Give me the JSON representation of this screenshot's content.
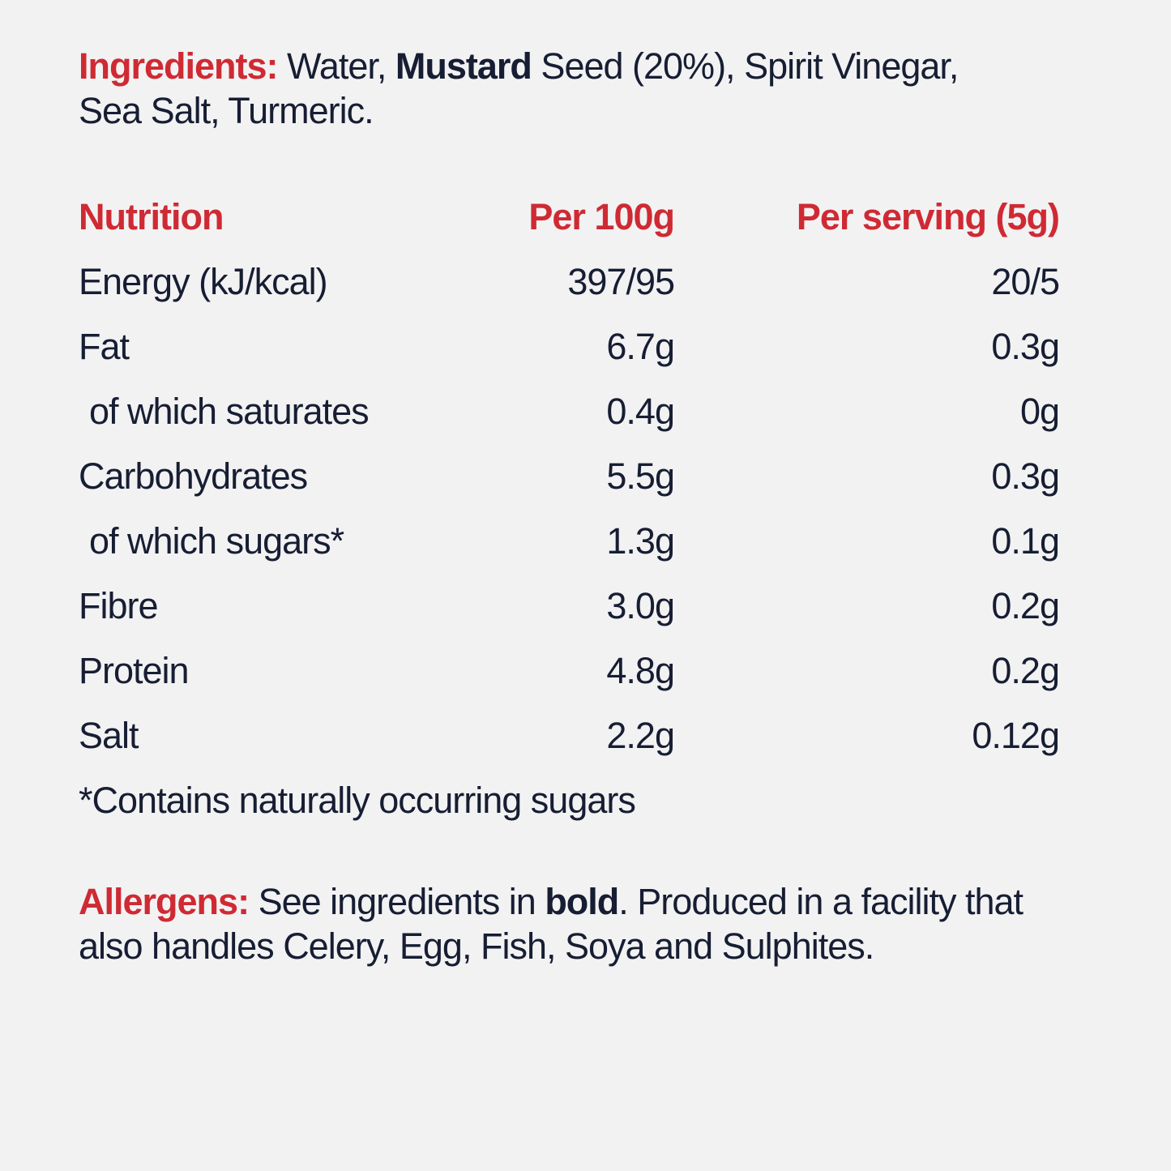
{
  "colors": {
    "background": "#f2f2f3",
    "accent_red": "#cf2a33",
    "text_dark": "#171e33"
  },
  "ingredients": {
    "label": "Ingredients: ",
    "before_bold": "Water, ",
    "bold": "Mustard",
    "after_bold": " Seed (20%), Spirit Vinegar,\nSea Salt, Turmeric."
  },
  "nutrition": {
    "headers": {
      "col1": "Nutrition",
      "col2": "Per 100g",
      "col3": "Per serving (5g)"
    },
    "rows": [
      {
        "label": "Energy (kJ/kcal)",
        "per_100g": "397/95",
        "per_serving": "20/5"
      },
      {
        "label": "Fat",
        "per_100g": "6.7g",
        "per_serving": "0.3g"
      },
      {
        "label": "of which saturates",
        "per_100g": "0.4g",
        "per_serving": "0g"
      },
      {
        "label": "Carbohydrates",
        "per_100g": "5.5g",
        "per_serving": "0.3g"
      },
      {
        "label": "of which sugars*",
        "per_100g": "1.3g",
        "per_serving": "0.1g"
      },
      {
        "label": "Fibre",
        "per_100g": "3.0g",
        "per_serving": "0.2g"
      },
      {
        "label": "Protein",
        "per_100g": "4.8g",
        "per_serving": "0.2g"
      },
      {
        "label": "Salt",
        "per_100g": "2.2g",
        "per_serving": "0.12g"
      }
    ],
    "footnote": "*Contains naturally occurring sugars"
  },
  "allergens": {
    "label": "Allergens: ",
    "before_bold": "See ingredients in ",
    "bold": "bold",
    "after_bold": ". Produced in a facility that\nalso handles Celery, Egg, Fish, Soya and Sulphites."
  }
}
